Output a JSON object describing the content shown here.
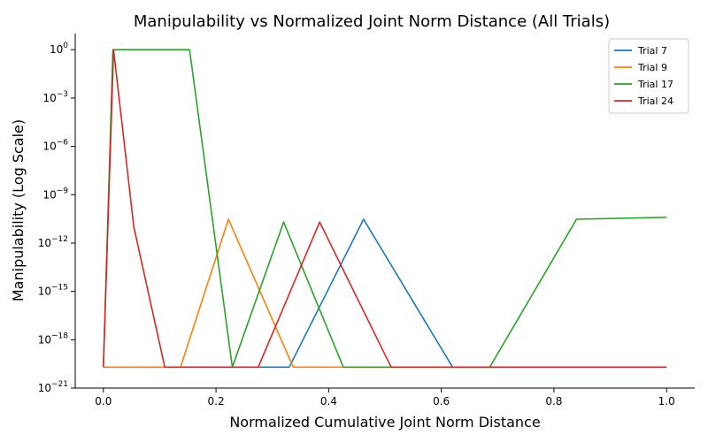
{
  "chart_data": {
    "type": "line",
    "title": "Manipulability vs Normalized Joint Norm Distance (All Trials)",
    "xlabel": "Normalized Cumulative Joint Norm Distance",
    "ylabel": "Manipulability (Log Scale)",
    "y_scale": "log",
    "xlim": [
      -0.05,
      1.05
    ],
    "ylim": [
      1e-21,
      10
    ],
    "x_ticks": [
      0.0,
      0.2,
      0.4,
      0.6,
      0.8,
      1.0
    ],
    "x_tick_labels": [
      "0.0",
      "0.2",
      "0.4",
      "0.6",
      "0.8",
      "1.0"
    ],
    "y_ticks": [
      1e-21,
      1e-18,
      1e-15,
      1e-12,
      1e-09,
      1e-06,
      0.001,
      1
    ],
    "y_tick_labels": [
      {
        "base": "10",
        "exp": "−21"
      },
      {
        "base": "10",
        "exp": "−18"
      },
      {
        "base": "10",
        "exp": "−15"
      },
      {
        "base": "10",
        "exp": "−12"
      },
      {
        "base": "10",
        "exp": "−9"
      },
      {
        "base": "10",
        "exp": "−6"
      },
      {
        "base": "10",
        "exp": "−3"
      },
      {
        "base": "10",
        "exp": "0"
      }
    ],
    "grid": false,
    "legend_position": "top-right",
    "series": [
      {
        "name": "Trial 7",
        "color": "#1f77b4",
        "x": [
          0.0,
          0.33,
          0.462,
          0.62,
          1.0
        ],
        "y": [
          2e-20,
          2e-20,
          3e-11,
          2e-20,
          2e-20
        ]
      },
      {
        "name": "Trial 9",
        "color": "#ff7f0e",
        "x": [
          0.0,
          0.137,
          0.222,
          0.337,
          1.0
        ],
        "y": [
          2e-20,
          2e-20,
          3e-11,
          2e-20,
          2e-20
        ]
      },
      {
        "name": "Trial 17",
        "color": "#2ca02c",
        "x": [
          0.0,
          0.017,
          0.153,
          0.229,
          0.32,
          0.426,
          0.686,
          0.84,
          1.0
        ],
        "y": [
          2e-20,
          1,
          1,
          2e-20,
          2e-11,
          2e-20,
          2e-20,
          3e-11,
          4e-11
        ]
      },
      {
        "name": "Trial 24",
        "color": "#d62728",
        "x": [
          0.0,
          0.018,
          0.054,
          0.109,
          0.275,
          0.384,
          0.511,
          1.0
        ],
        "y": [
          2e-20,
          1,
          1e-11,
          2e-20,
          2e-20,
          2e-11,
          2e-20,
          2e-20
        ]
      }
    ]
  }
}
